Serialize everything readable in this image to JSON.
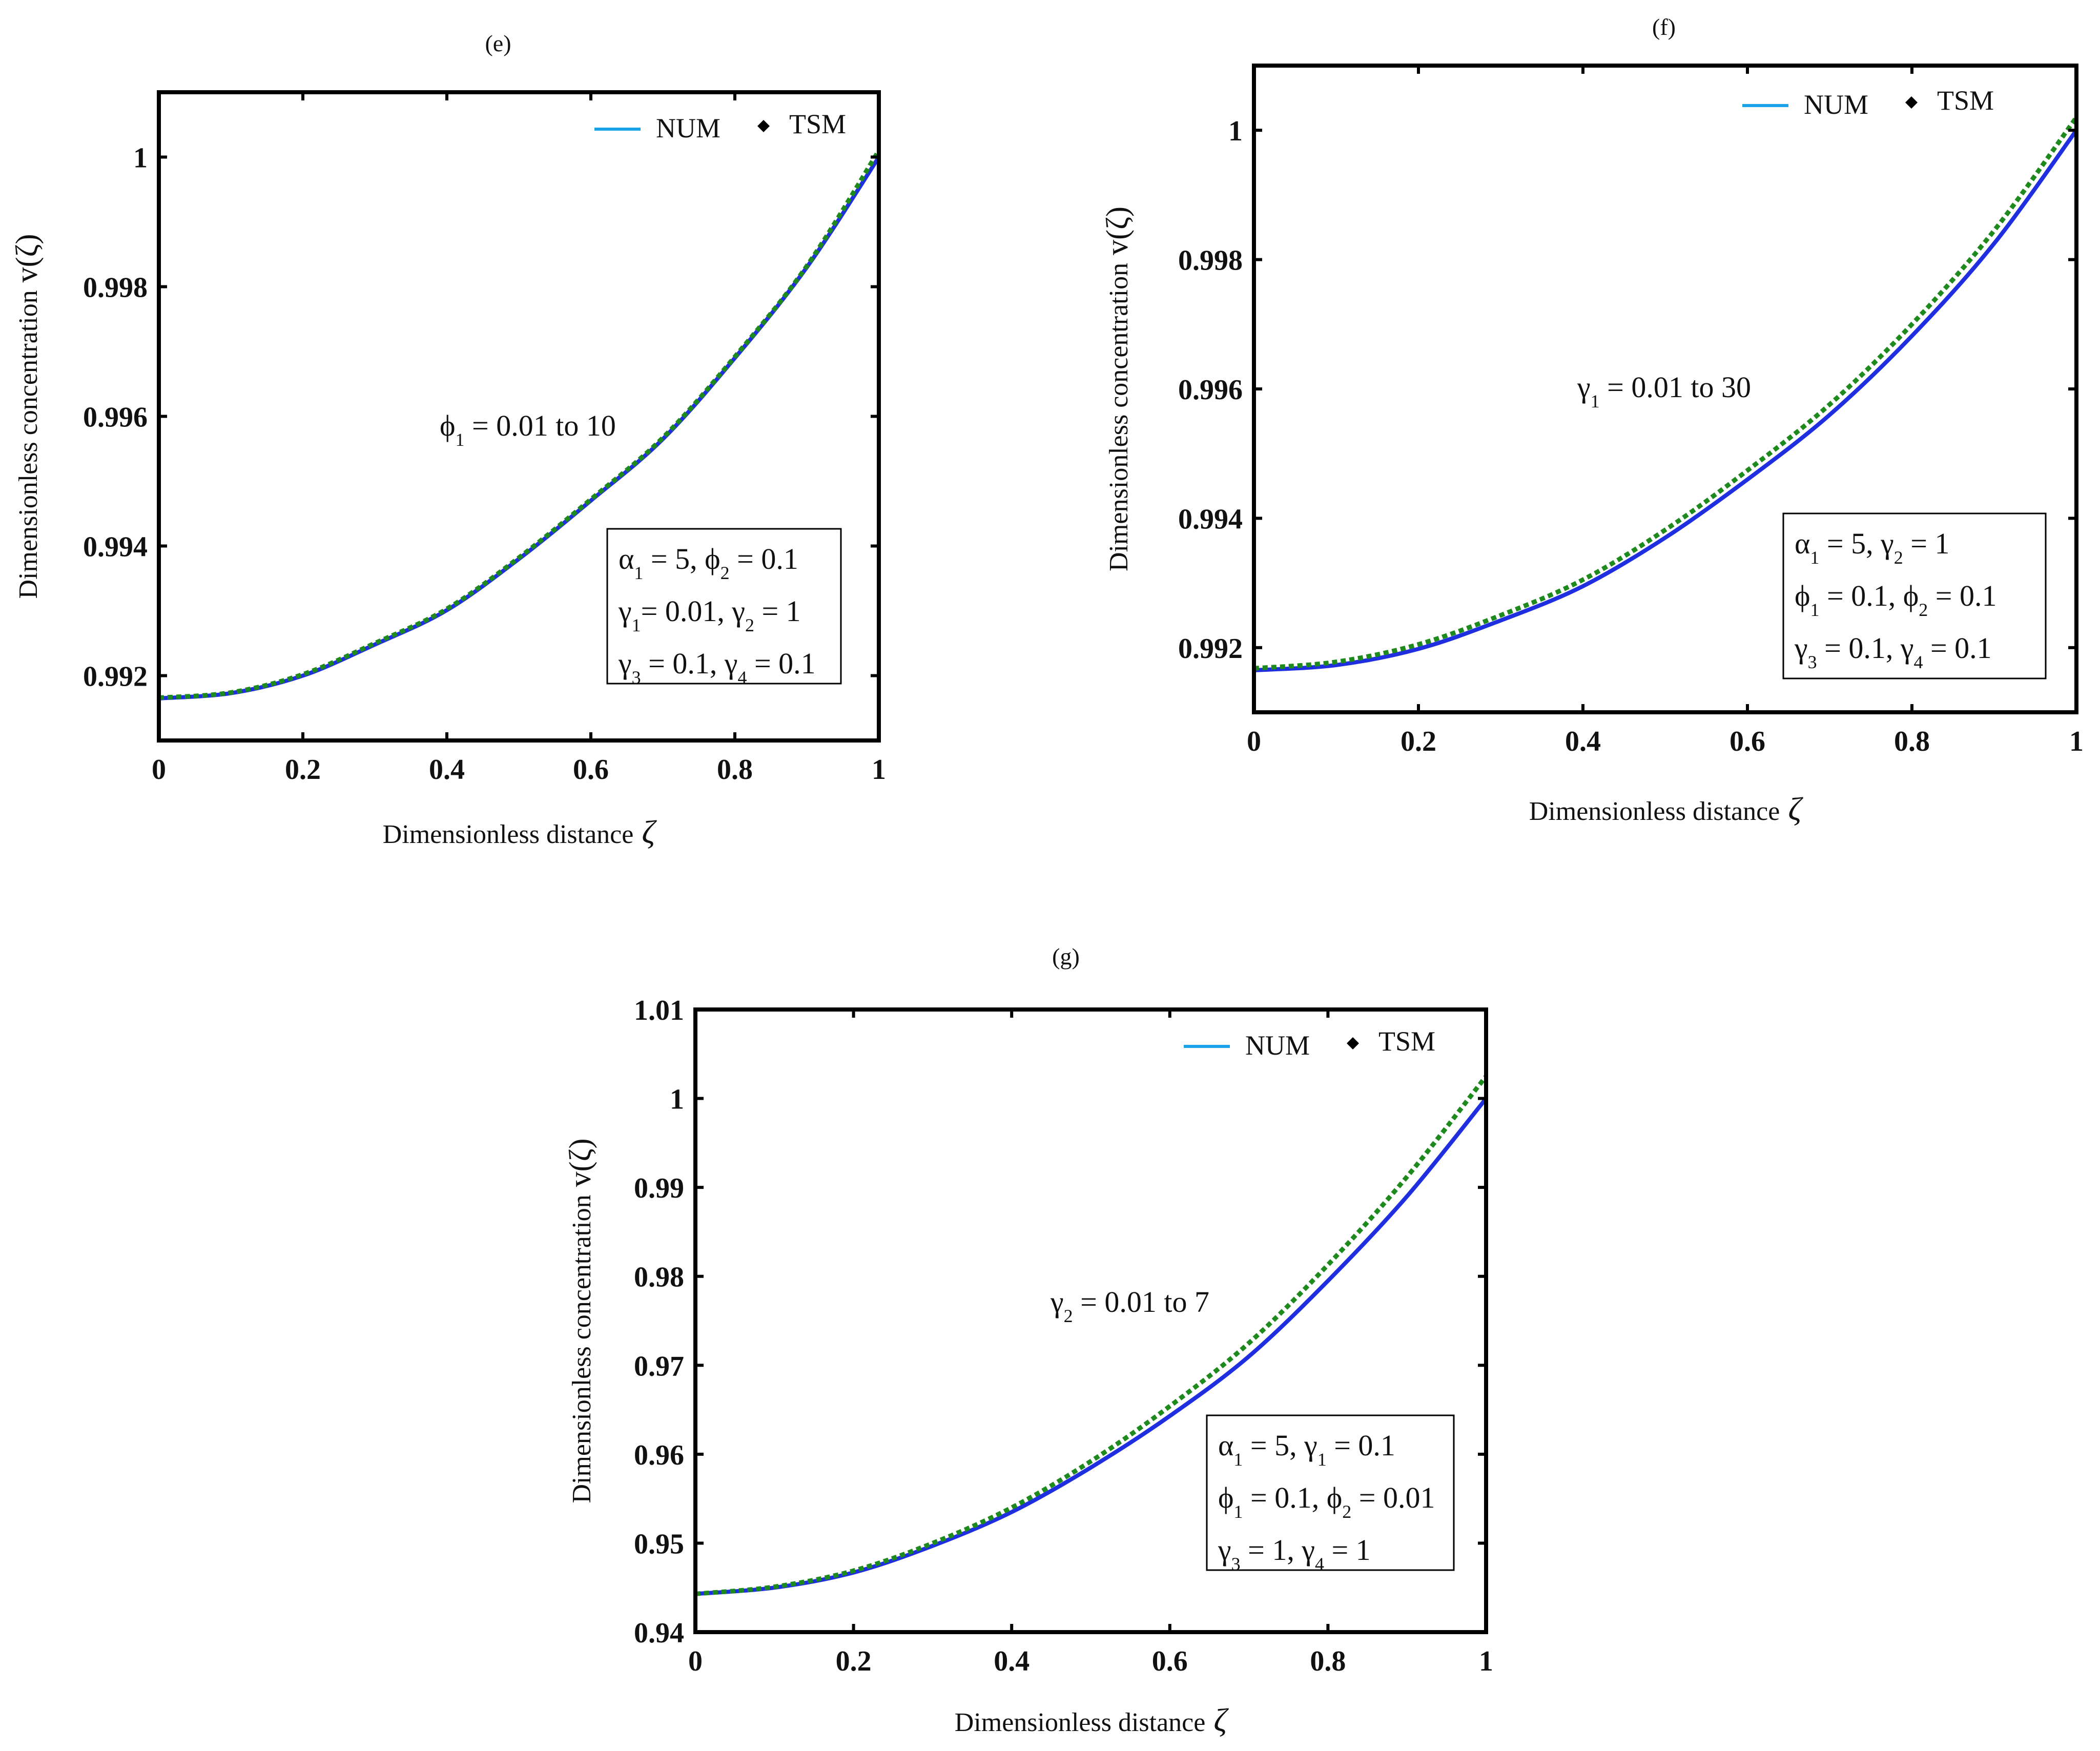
{
  "chart_data": [
    {
      "type": "line",
      "panel_label": "(e)",
      "xlabel": "Dimensionless distance",
      "xlabel_symbol": "ζ",
      "ylabel": "Dimensionless concentration",
      "ylabel_symbol": "v(ζ)",
      "xlim": [
        0,
        1
      ],
      "ylim": [
        0.991,
        1.001
      ],
      "x_ticks": [
        0,
        0.2,
        0.4,
        0.6,
        0.8,
        1
      ],
      "x_tick_labels": [
        "0",
        "0.2",
        "0.4",
        "0.6",
        "0.8",
        "1"
      ],
      "y_ticks": [
        0.992,
        0.994,
        0.996,
        0.998,
        1
      ],
      "y_tick_labels": [
        "0.992",
        "0.994",
        "0.996",
        "0.998",
        "1"
      ],
      "legend": [
        {
          "name": "NUM",
          "marker": "line"
        },
        {
          "name": "TSM",
          "marker": "diamond"
        }
      ],
      "annotation": {
        "symbol": "ϕ",
        "sub": "1",
        "text": " = 0.01 to 10"
      },
      "params_box": [
        [
          {
            "s": "α",
            "sub": "1"
          },
          {
            "t": " = 5, "
          },
          {
            "s": "ϕ",
            "sub": "2"
          },
          {
            "t": " = 0.1"
          }
        ],
        [
          {
            "s": "γ",
            "sub": "1"
          },
          {
            "t": "= 0.01, "
          },
          {
            "s": "γ",
            "sub": "2"
          },
          {
            "t": " = 1"
          }
        ],
        [
          {
            "s": "γ",
            "sub": "3"
          },
          {
            "t": " = 0.1, "
          },
          {
            "s": "γ",
            "sub": "4"
          },
          {
            "t": " = 0.1"
          }
        ]
      ],
      "series": [
        {
          "name": "NUM",
          "color": "#1f2fe0",
          "x": [
            0,
            0.1,
            0.2,
            0.3,
            0.4,
            0.5,
            0.6,
            0.7,
            0.8,
            0.9,
            1
          ],
          "y": [
            0.99165,
            0.99173,
            0.992,
            0.99248,
            0.99301,
            0.9938,
            0.9947,
            0.99565,
            0.9969,
            0.9983,
            1.0
          ]
        },
        {
          "name": "TSM",
          "color": "#1e8a1e",
          "x": [
            0,
            0.1,
            0.2,
            0.3,
            0.4,
            0.5,
            0.6,
            0.7,
            0.8,
            0.9,
            1
          ],
          "y": [
            0.99166,
            0.99174,
            0.99202,
            0.9925,
            0.99303,
            0.99382,
            0.99472,
            0.99567,
            0.99692,
            0.99832,
            1.0001
          ]
        }
      ]
    },
    {
      "type": "line",
      "panel_label": "(f)",
      "xlabel": "Dimensionless distance",
      "xlabel_symbol": "ζ",
      "ylabel": "Dimensionless concentration",
      "ylabel_symbol": "v(ζ)",
      "xlim": [
        0,
        1
      ],
      "ylim": [
        0.991,
        1.001
      ],
      "x_ticks": [
        0,
        0.2,
        0.4,
        0.6,
        0.8,
        1
      ],
      "x_tick_labels": [
        "0",
        "0.2",
        "0.4",
        "0.6",
        "0.8",
        "1"
      ],
      "y_ticks": [
        0.992,
        0.994,
        0.996,
        0.998,
        1
      ],
      "y_tick_labels": [
        "0.992",
        "0.994",
        "0.996",
        "0.998",
        "1"
      ],
      "legend": [
        {
          "name": "NUM",
          "marker": "line"
        },
        {
          "name": "TSM",
          "marker": "diamond"
        }
      ],
      "annotation": {
        "symbol": "γ",
        "sub": "1",
        "text": " = 0.01 to 30"
      },
      "params_box": [
        [
          {
            "s": "α",
            "sub": "1"
          },
          {
            "t": " = 5, "
          },
          {
            "s": "γ",
            "sub": "2"
          },
          {
            "t": " = 1"
          }
        ],
        [
          {
            "s": "ϕ",
            "sub": "1"
          },
          {
            "t": " = 0.1, "
          },
          {
            "s": "ϕ",
            "sub": "2"
          },
          {
            "t": " = 0.1"
          }
        ],
        [
          {
            "s": "γ",
            "sub": "3"
          },
          {
            "t": " = 0.1, "
          },
          {
            "s": "γ",
            "sub": "4"
          },
          {
            "t": " = 0.1"
          }
        ]
      ],
      "series": [
        {
          "name": "NUM",
          "color": "#1f2fe0",
          "x": [
            0,
            0.1,
            0.2,
            0.3,
            0.4,
            0.5,
            0.6,
            0.7,
            0.8,
            0.9,
            1
          ],
          "y": [
            0.99165,
            0.99173,
            0.99198,
            0.99242,
            0.99295,
            0.9937,
            0.9946,
            0.9956,
            0.99682,
            0.99825,
            1.0
          ]
        },
        {
          "name": "TSM",
          "color": "#1e8a1e",
          "x": [
            0,
            0.1,
            0.2,
            0.3,
            0.4,
            0.5,
            0.6,
            0.7,
            0.8,
            0.9,
            1
          ],
          "y": [
            0.99168,
            0.99178,
            0.99205,
            0.9925,
            0.99305,
            0.99382,
            0.99474,
            0.99576,
            0.997,
            0.99845,
            1.0002
          ]
        }
      ]
    },
    {
      "type": "line",
      "panel_label": "(g)",
      "xlabel": "Dimensionless distance",
      "xlabel_symbol": "ζ",
      "ylabel": "Dimensionless concentration",
      "ylabel_symbol": "v(ζ)",
      "xlim": [
        0,
        1
      ],
      "ylim": [
        0.94,
        1.01
      ],
      "x_ticks": [
        0,
        0.2,
        0.4,
        0.6,
        0.8,
        1
      ],
      "x_tick_labels": [
        "0",
        "0.2",
        "0.4",
        "0.6",
        "0.8",
        "1"
      ],
      "y_ticks": [
        0.94,
        0.95,
        0.96,
        0.97,
        0.98,
        0.99,
        1,
        1.01
      ],
      "y_tick_labels": [
        "0.94",
        "0.95",
        "0.96",
        "0.97",
        "0.98",
        "0.99",
        "1",
        "1.01"
      ],
      "legend": [
        {
          "name": "NUM",
          "marker": "line"
        },
        {
          "name": "TSM",
          "marker": "diamond"
        }
      ],
      "annotation": {
        "symbol": "γ",
        "sub": "2",
        "text": " = 0.01 to 7"
      },
      "params_box": [
        [
          {
            "s": "α",
            "sub": "1"
          },
          {
            "t": " = 5, "
          },
          {
            "s": "γ",
            "sub": "1"
          },
          {
            "t": " = 0.1"
          }
        ],
        [
          {
            "s": "ϕ",
            "sub": "1"
          },
          {
            "t": " = 0.1, "
          },
          {
            "s": "ϕ",
            "sub": "2"
          },
          {
            "t": " = 0.01"
          }
        ],
        [
          {
            "s": "γ",
            "sub": "3"
          },
          {
            "t": " = 1, "
          },
          {
            "s": "γ",
            "sub": "4"
          },
          {
            "t": " = 1"
          }
        ]
      ],
      "series": [
        {
          "name": "NUM",
          "color": "#1f2fe0",
          "x": [
            0,
            0.1,
            0.2,
            0.3,
            0.4,
            0.5,
            0.6,
            0.7,
            0.8,
            0.9,
            1
          ],
          "y": [
            0.9443,
            0.945,
            0.9467,
            0.9497,
            0.9535,
            0.9585,
            0.9643,
            0.971,
            0.9795,
            0.989,
            1.0
          ]
        },
        {
          "name": "TSM",
          "color": "#1e8a1e",
          "x": [
            0,
            0.1,
            0.2,
            0.3,
            0.4,
            0.5,
            0.6,
            0.7,
            0.8,
            0.9,
            1
          ],
          "y": [
            0.9443,
            0.9451,
            0.9469,
            0.95,
            0.954,
            0.9592,
            0.9654,
            0.9725,
            0.9813,
            0.9912,
            1.0025
          ]
        }
      ]
    }
  ]
}
